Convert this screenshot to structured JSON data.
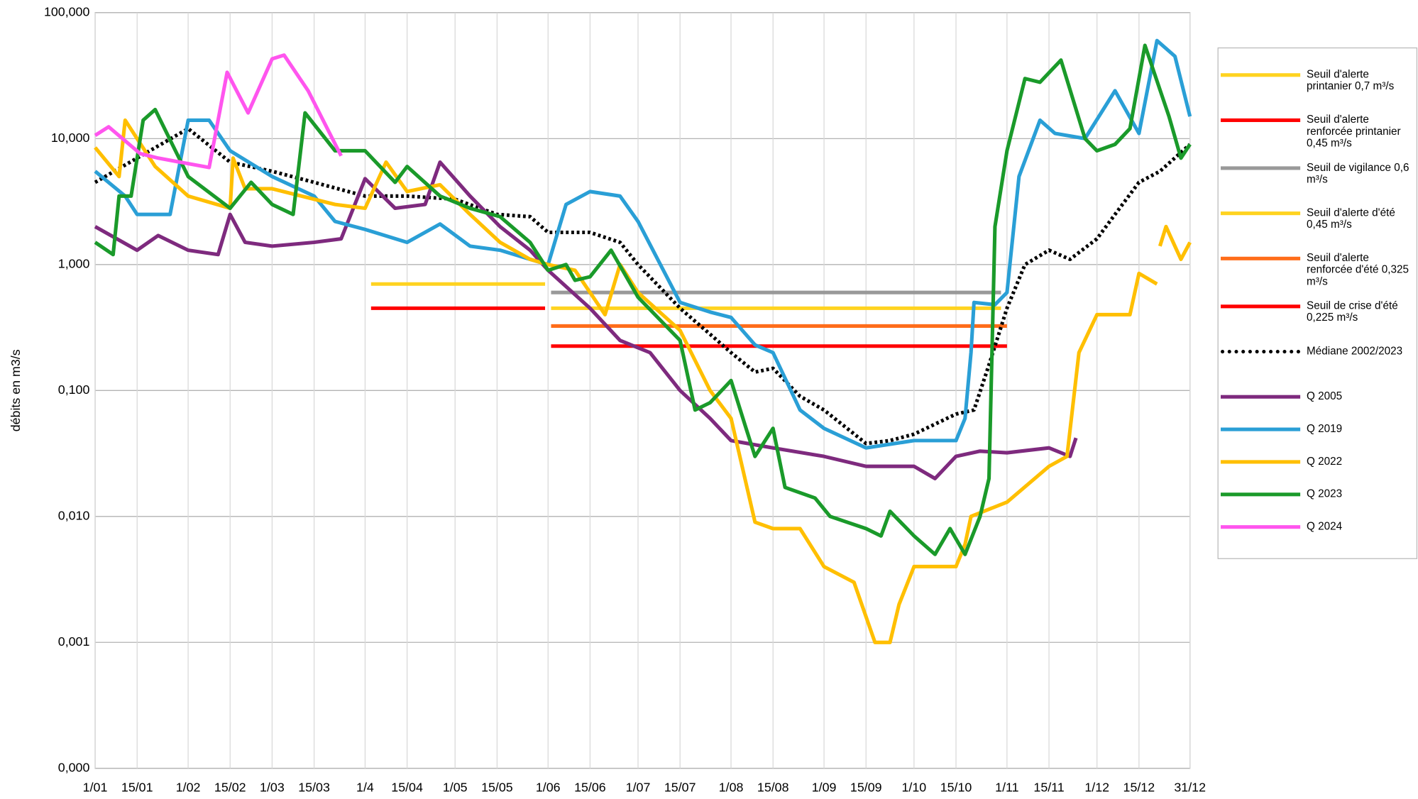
{
  "chart_data": {
    "type": "line",
    "y_label": "débits en m3/s",
    "log_scale": true,
    "grid": true,
    "xlim": [
      0,
      365
    ],
    "ylim": [
      0.0001,
      100
    ],
    "xticks": [
      {
        "value": 0,
        "label": "1/01"
      },
      {
        "value": 14,
        "label": "15/01"
      },
      {
        "value": 31,
        "label": "1/02"
      },
      {
        "value": 45,
        "label": "15/02"
      },
      {
        "value": 59,
        "label": "1/03"
      },
      {
        "value": 73,
        "label": "15/03"
      },
      {
        "value": 90,
        "label": "1/4"
      },
      {
        "value": 104,
        "label": "15/04"
      },
      {
        "value": 120,
        "label": "1/05"
      },
      {
        "value": 134,
        "label": "15/05"
      },
      {
        "value": 151,
        "label": "1/06"
      },
      {
        "value": 165,
        "label": "15/06"
      },
      {
        "value": 181,
        "label": "1/07"
      },
      {
        "value": 195,
        "label": "15/07"
      },
      {
        "value": 212,
        "label": "1/08"
      },
      {
        "value": 226,
        "label": "15/08"
      },
      {
        "value": 243,
        "label": "1/09"
      },
      {
        "value": 257,
        "label": "15/09"
      },
      {
        "value": 273,
        "label": "1/10"
      },
      {
        "value": 287,
        "label": "15/10"
      },
      {
        "value": 304,
        "label": "1/11"
      },
      {
        "value": 318,
        "label": "15/11"
      },
      {
        "value": 334,
        "label": "1/12"
      },
      {
        "value": 348,
        "label": "15/12"
      },
      {
        "value": 365,
        "label": "31/12"
      }
    ],
    "yticks": [
      {
        "value": 0.0001,
        "label": "0,000"
      },
      {
        "value": 0.001,
        "label": "0,001"
      },
      {
        "value": 0.01,
        "label": "0,010"
      },
      {
        "value": 0.1,
        "label": "0,100"
      },
      {
        "value": 1,
        "label": "1,000"
      },
      {
        "value": 10,
        "label": "10,000"
      },
      {
        "value": 100,
        "label": "100,000"
      }
    ],
    "series": [
      {
        "name": "Seuil d'alerte printanier 0,7 m³/s",
        "color": "#ffd320",
        "x": [
          92,
          150
        ],
        "values": [
          0.7,
          0.7
        ]
      },
      {
        "name": "Seuil d'alerte renforcée printanier 0,45 m³/s",
        "color": "#ff0000",
        "x": [
          92,
          150
        ],
        "values": [
          0.45,
          0.45
        ]
      },
      {
        "name": "Seuil de vigilance 0,6 m³/s",
        "color": "#999999",
        "x": [
          152,
          302
        ],
        "values": [
          0.6,
          0.6
        ]
      },
      {
        "name": "Seuil d'alerte d'été 0,45 m³/s",
        "color": "#ffd320",
        "x": [
          152,
          302
        ],
        "values": [
          0.45,
          0.45
        ]
      },
      {
        "name": "Seuil d'alerte renforcée d'été 0,325 m³/s",
        "color": "#ff6d1a",
        "x": [
          152,
          304
        ],
        "values": [
          0.325,
          0.325
        ]
      },
      {
        "name": "Seuil de crise d'été 0,225 m³/s",
        "color": "#ff0000",
        "x": [
          152,
          304
        ],
        "values": [
          0.225,
          0.225
        ]
      },
      {
        "name": "Médiane 2002/2023",
        "color": "#000000",
        "dash": "dotted",
        "x": [
          0,
          14,
          31,
          45,
          59,
          73,
          90,
          104,
          120,
          134,
          145,
          151,
          165,
          175,
          181,
          195,
          205,
          212,
          220,
          226,
          235,
          243,
          257,
          265,
          273,
          287,
          293,
          298,
          304,
          310,
          318,
          325,
          334,
          340,
          348,
          355,
          365
        ],
        "values": [
          4.5,
          7,
          12,
          6.5,
          5.5,
          4.5,
          3.5,
          3.5,
          3.3,
          2.5,
          2.4,
          1.8,
          1.8,
          1.5,
          1.0,
          0.45,
          0.28,
          0.2,
          0.14,
          0.15,
          0.09,
          0.07,
          0.038,
          0.04,
          0.045,
          0.065,
          0.07,
          0.16,
          0.45,
          1.0,
          1.3,
          1.1,
          1.6,
          2.5,
          4.5,
          5.5,
          9
        ]
      },
      {
        "name": "Q 2005",
        "color": "#7e2a7e",
        "x": [
          0,
          14,
          21,
          31,
          41,
          45,
          50,
          59,
          73,
          82,
          90,
          100,
          110,
          115,
          125,
          135,
          145,
          151,
          165,
          175,
          185,
          195,
          205,
          212,
          226,
          243,
          257,
          273,
          280,
          287,
          295,
          304,
          318,
          325,
          327
        ],
        "values": [
          2,
          1.3,
          1.7,
          1.3,
          1.2,
          2.5,
          1.5,
          1.4,
          1.5,
          1.6,
          4.8,
          2.8,
          3.0,
          6.5,
          3.5,
          2.0,
          1.3,
          0.9,
          0.45,
          0.25,
          0.2,
          0.1,
          0.06,
          0.04,
          0.035,
          0.03,
          0.025,
          0.025,
          0.02,
          0.03,
          0.033,
          0.032,
          0.035,
          0.03,
          0.042
        ]
      },
      {
        "name": "Q 2019",
        "color": "#2a9fd6",
        "x": [
          0,
          10,
          14,
          25,
          31,
          38,
          45,
          59,
          73,
          80,
          90,
          104,
          115,
          125,
          135,
          145,
          151,
          157,
          165,
          175,
          181,
          195,
          205,
          212,
          220,
          226,
          235,
          243,
          257,
          273,
          287,
          290,
          292,
          293,
          300,
          304,
          308,
          315,
          320,
          330,
          340,
          348,
          354,
          360,
          365
        ],
        "values": [
          5.5,
          3.5,
          2.5,
          2.5,
          14,
          14,
          8,
          5,
          3.5,
          2.2,
          1.9,
          1.5,
          2.1,
          1.4,
          1.3,
          1.1,
          1.0,
          3.0,
          3.8,
          3.5,
          2.2,
          0.5,
          0.42,
          0.38,
          0.23,
          0.2,
          0.07,
          0.05,
          0.035,
          0.04,
          0.04,
          0.06,
          0.2,
          0.5,
          0.48,
          0.6,
          5,
          14,
          11,
          10,
          24,
          11,
          60,
          45,
          15
        ]
      },
      {
        "name": "Q 2022",
        "color": "#ffbf00",
        "x": [
          0,
          8,
          10,
          20,
          31,
          45,
          46,
          50,
          59,
          73,
          80,
          90,
          97,
          104,
          115,
          125,
          135,
          145,
          151,
          160,
          170,
          175,
          181,
          195,
          205,
          212,
          220,
          226,
          235,
          243,
          253,
          260,
          265,
          268,
          273,
          287,
          290,
          292,
          304,
          318,
          324,
          328,
          334,
          340,
          345,
          348,
          354,
          354.5,
          355,
          357,
          362,
          365
        ],
        "values": [
          8.5,
          5,
          14,
          6,
          3.5,
          2.8,
          7,
          4,
          4,
          3.3,
          3.0,
          2.8,
          6.5,
          3.8,
          4.3,
          2.5,
          1.5,
          1.1,
          1.0,
          0.9,
          0.4,
          1.0,
          0.6,
          0.3,
          0.1,
          0.06,
          0.009,
          0.008,
          0.008,
          0.004,
          0.003,
          0.001,
          0.001,
          0.002,
          0.004,
          0.004,
          0.006,
          0.01,
          0.013,
          0.025,
          0.03,
          0.2,
          0.4,
          0.4,
          0.4,
          0.85,
          0.7,
          null,
          1.4,
          2.0,
          1.1,
          1.5
        ]
      },
      {
        "name": "Q 2023",
        "color": "#1a9a2a",
        "x": [
          0,
          6,
          8,
          12,
          16,
          20,
          31,
          45,
          52,
          59,
          66,
          70,
          80,
          90,
          100,
          104,
          115,
          125,
          135,
          145,
          151,
          157,
          160,
          165,
          172,
          181,
          195,
          200,
          205,
          212,
          217,
          220,
          226,
          230,
          240,
          245,
          257,
          262,
          265,
          273,
          280,
          285,
          290,
          295,
          298,
          300,
          304,
          310,
          315,
          322,
          330,
          334,
          340,
          345,
          350,
          358,
          362,
          365
        ],
        "values": [
          1.5,
          1.2,
          3.5,
          3.5,
          14,
          17,
          5,
          2.8,
          4.5,
          3.0,
          2.5,
          16,
          8,
          8,
          4.5,
          6,
          3.5,
          2.8,
          2.4,
          1.5,
          0.9,
          1.0,
          0.75,
          0.8,
          1.3,
          0.55,
          0.25,
          0.07,
          0.08,
          0.12,
          0.05,
          0.03,
          0.05,
          0.017,
          0.014,
          0.01,
          0.008,
          0.007,
          0.011,
          0.007,
          0.005,
          0.008,
          0.005,
          0.01,
          0.02,
          2,
          8,
          30,
          28,
          42,
          10,
          8,
          9,
          12,
          55,
          15,
          7,
          9
        ]
      },
      {
        "name": "Q 2024",
        "color": "#ff55ee",
        "x": [
          0,
          4.5,
          15,
          21,
          38,
          44,
          51,
          59,
          63,
          71,
          82
        ],
        "values": [
          10.6,
          12.4,
          7.6,
          7.0,
          5.9,
          33.6,
          16,
          43,
          46,
          24,
          7.3
        ]
      }
    ]
  }
}
